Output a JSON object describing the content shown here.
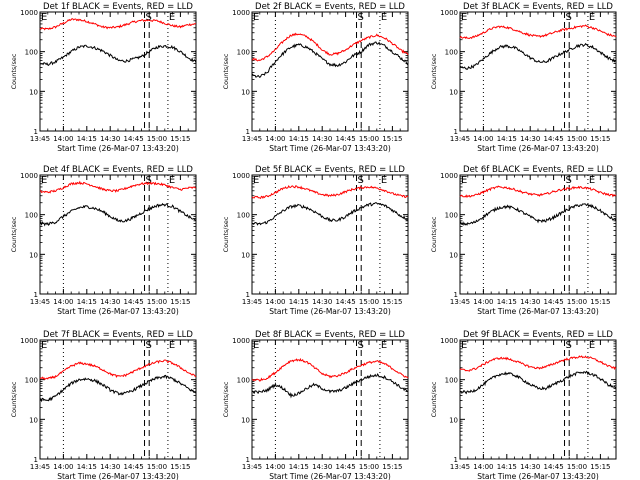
{
  "chart_data": {
    "type": "line",
    "layout": "3x3 grid",
    "y_scale": "log",
    "ylim": [
      1,
      1000
    ],
    "y_tick_labels": [
      "1",
      "10",
      "100",
      "1000"
    ],
    "ylabel": "Counts/sec",
    "xlabel": "Start Time (26-Mar-07 13:43:20)",
    "x_tick_labels": [
      "13:45",
      "14:00",
      "14:15",
      "14:30",
      "14:45",
      "15:00",
      "15:15"
    ],
    "x_ticks_min": [
      0,
      15,
      30,
      45,
      60,
      75,
      90
    ],
    "xlim_min": [
      0,
      100
    ],
    "x_zero_time": "13:45",
    "markers": {
      "E_label": "E",
      "S_label": "S",
      "dotted_x_min": [
        15,
        82
      ],
      "dashed_x_min": [
        67,
        70
      ],
      "E_pos_min": [
        0,
        82
      ],
      "S_pos_min": [
        67
      ]
    },
    "series_colors": {
      "events": "#000000",
      "lld": "#ff0000"
    },
    "panels": [
      {
        "title": "Det 1f BLACK = Events, RED = LLD",
        "events": [
          50,
          48,
          55,
          72,
          100,
          130,
          140,
          125,
          105,
          80,
          60,
          58,
          65,
          75,
          100,
          130,
          140,
          130,
          100,
          70,
          55
        ],
        "lld": [
          380,
          370,
          420,
          520,
          650,
          640,
          580,
          500,
          420,
          400,
          420,
          480,
          560,
          610,
          620,
          600,
          520,
          450,
          420,
          480,
          500
        ]
      },
      {
        "title": "Det 2f BLACK = Events, RED = LLD",
        "events": [
          25,
          23,
          30,
          55,
          90,
          130,
          150,
          130,
          95,
          65,
          48,
          45,
          55,
          80,
          100,
          150,
          170,
          140,
          100,
          70,
          50
        ],
        "lld": [
          65,
          60,
          75,
          110,
          180,
          260,
          280,
          240,
          170,
          110,
          85,
          90,
          110,
          150,
          190,
          230,
          260,
          220,
          160,
          110,
          85
        ]
      },
      {
        "title": "Det 3f BLACK = Events, RED = LLD",
        "events": [
          40,
          38,
          45,
          65,
          95,
          130,
          140,
          125,
          95,
          70,
          55,
          55,
          70,
          90,
          110,
          140,
          150,
          130,
          95,
          70,
          55
        ],
        "lld": [
          230,
          220,
          240,
          300,
          380,
          430,
          410,
          360,
          300,
          260,
          240,
          260,
          300,
          350,
          380,
          420,
          450,
          400,
          330,
          270,
          240
        ]
      },
      {
        "title": "Det 4f BLACK = Events, RED = LLD",
        "events": [
          60,
          58,
          65,
          90,
          120,
          150,
          160,
          145,
          120,
          90,
          70,
          70,
          85,
          110,
          140,
          170,
          180,
          160,
          120,
          90,
          70
        ],
        "lld": [
          380,
          370,
          400,
          480,
          600,
          640,
          600,
          520,
          440,
          400,
          400,
          460,
          540,
          600,
          620,
          610,
          560,
          480,
          430,
          470,
          480
        ]
      },
      {
        "title": "Det 5f BLACK = Events, RED = LLD",
        "events": [
          60,
          58,
          65,
          90,
          125,
          160,
          170,
          150,
          120,
          90,
          72,
          72,
          90,
          120,
          150,
          180,
          190,
          170,
          130,
          95,
          75
        ],
        "lld": [
          280,
          270,
          290,
          360,
          460,
          520,
          500,
          440,
          370,
          320,
          300,
          320,
          380,
          440,
          480,
          500,
          470,
          410,
          340,
          300,
          280
        ]
      },
      {
        "title": "Det 6f BLACK = Events, RED = LLD",
        "events": [
          60,
          58,
          65,
          88,
          120,
          150,
          160,
          145,
          115,
          88,
          70,
          70,
          85,
          110,
          140,
          170,
          180,
          160,
          125,
          90,
          70
        ],
        "lld": [
          300,
          290,
          310,
          370,
          450,
          500,
          480,
          430,
          370,
          330,
          310,
          330,
          380,
          430,
          460,
          490,
          480,
          430,
          360,
          320,
          300
        ]
      },
      {
        "title": "Det 7f BLACK = Events, RED = LLD",
        "events": [
          32,
          30,
          38,
          55,
          80,
          100,
          105,
          95,
          75,
          55,
          45,
          45,
          55,
          70,
          90,
          110,
          120,
          105,
          80,
          60,
          45
        ],
        "lld": [
          110,
          105,
          120,
          160,
          220,
          260,
          250,
          220,
          180,
          140,
          120,
          130,
          160,
          200,
          240,
          280,
          300,
          260,
          200,
          150,
          120
        ]
      },
      {
        "title": "Det 8f BLACK = Events, RED = LLD",
        "events": [
          50,
          48,
          55,
          75,
          60,
          40,
          45,
          60,
          75,
          60,
          50,
          52,
          62,
          80,
          100,
          120,
          130,
          115,
          90,
          65,
          50
        ],
        "lld": [
          100,
          98,
          110,
          150,
          220,
          300,
          320,
          280,
          200,
          140,
          120,
          125,
          150,
          190,
          230,
          270,
          290,
          250,
          190,
          140,
          110
        ]
      },
      {
        "title": "Det 9f BLACK = Events, RED = LLD",
        "events": [
          50,
          48,
          55,
          75,
          105,
          135,
          145,
          130,
          100,
          75,
          60,
          60,
          75,
          95,
          120,
          145,
          155,
          135,
          105,
          75,
          60
        ],
        "lld": [
          180,
          170,
          190,
          240,
          310,
          350,
          340,
          300,
          250,
          210,
          195,
          210,
          250,
          300,
          340,
          370,
          380,
          340,
          280,
          220,
          190
        ]
      }
    ]
  }
}
